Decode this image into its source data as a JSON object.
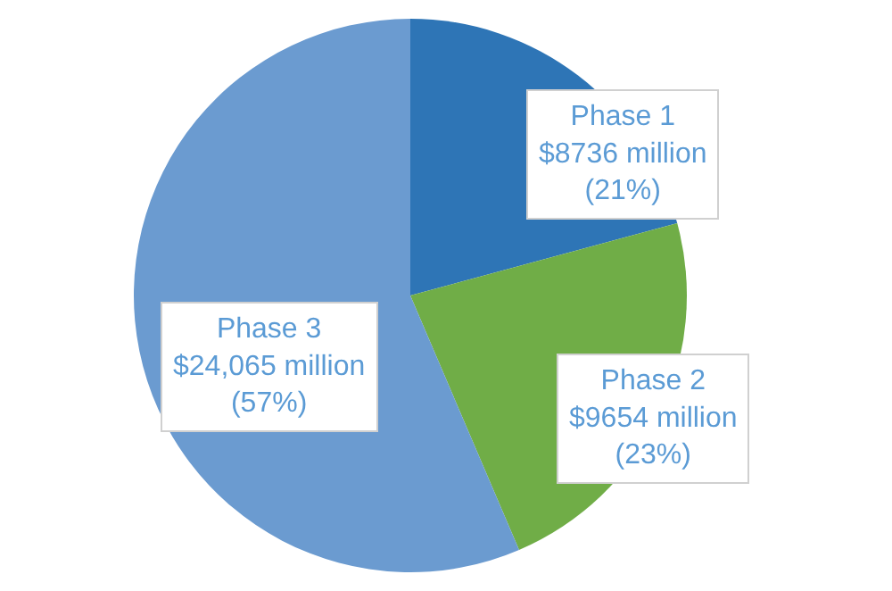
{
  "chart_data": {
    "type": "pie",
    "categories": [
      "Phase 1\n$8736 million",
      "Phase 2\n$9654 million",
      "Phase 3\n$24,065 million"
    ],
    "values": [
      21,
      23,
      57
    ],
    "colors": [
      "#2e75b6",
      "#70ad47",
      "#6b9bd0"
    ],
    "value_labels": [
      "(21%)",
      "(23%)",
      "(57%)"
    ],
    "legend": false
  }
}
